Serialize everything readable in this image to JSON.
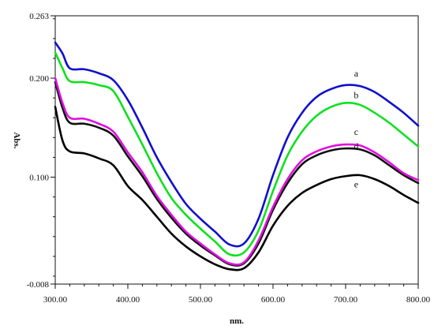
{
  "chart_data": {
    "type": "line",
    "title": "",
    "xlabel": "nm.",
    "ylabel": "Abs.",
    "xlim": [
      300,
      800
    ],
    "ylim": [
      -0.008,
      0.263
    ],
    "grid": false,
    "legend": "inline curve labels",
    "x_ticks": [
      {
        "value": 300,
        "label": "300.00"
      },
      {
        "value": 400,
        "label": "400.00"
      },
      {
        "value": 500,
        "label": "500.00"
      },
      {
        "value": 600,
        "label": "600.00"
      },
      {
        "value": 700,
        "label": "700.00"
      },
      {
        "value": 800,
        "label": "800.00"
      }
    ],
    "y_ticks": [
      {
        "value": 0.263,
        "label": "0.263"
      },
      {
        "value": 0.2,
        "label": "0.200"
      },
      {
        "value": 0.1,
        "label": "0.100"
      },
      {
        "value": -0.008,
        "label": "-0.008"
      }
    ],
    "x": [
      300,
      310,
      320,
      340,
      360,
      380,
      400,
      420,
      440,
      460,
      480,
      500,
      520,
      540,
      560,
      580,
      600,
      620,
      640,
      660,
      680,
      700,
      720,
      740,
      760,
      780,
      800
    ],
    "series": [
      {
        "name": "a",
        "color": "#1010cc",
        "label_at": {
          "x": 720,
          "y": 0.197
        },
        "values": [
          0.236,
          0.225,
          0.21,
          0.209,
          0.205,
          0.198,
          0.178,
          0.15,
          0.12,
          0.095,
          0.073,
          0.058,
          0.045,
          0.032,
          0.033,
          0.058,
          0.102,
          0.14,
          0.165,
          0.181,
          0.189,
          0.193,
          0.192,
          0.186,
          0.176,
          0.165,
          0.152
        ]
      },
      {
        "name": "b",
        "color": "#10e020",
        "label_at": {
          "x": 720,
          "y": 0.175
        },
        "values": [
          0.226,
          0.21,
          0.197,
          0.196,
          0.193,
          0.187,
          0.161,
          0.133,
          0.104,
          0.079,
          0.062,
          0.048,
          0.035,
          0.022,
          0.024,
          0.046,
          0.086,
          0.122,
          0.146,
          0.162,
          0.171,
          0.175,
          0.173,
          0.165,
          0.155,
          0.143,
          0.131
        ]
      },
      {
        "name": "c",
        "color": "#e010e0",
        "label_at": {
          "x": 720,
          "y": 0.138
        },
        "values": [
          0.2,
          0.175,
          0.16,
          0.159,
          0.154,
          0.146,
          0.125,
          0.105,
          0.081,
          0.062,
          0.045,
          0.033,
          0.022,
          0.013,
          0.014,
          0.036,
          0.07,
          0.098,
          0.117,
          0.126,
          0.131,
          0.133,
          0.132,
          0.125,
          0.115,
          0.104,
          0.097
        ]
      },
      {
        "name": "d",
        "color": "#111111",
        "label_at": {
          "x": 720,
          "y": 0.123
        },
        "values": [
          0.196,
          0.17,
          0.155,
          0.154,
          0.15,
          0.142,
          0.121,
          0.101,
          0.078,
          0.059,
          0.043,
          0.031,
          0.021,
          0.012,
          0.013,
          0.033,
          0.067,
          0.094,
          0.113,
          0.122,
          0.127,
          0.129,
          0.128,
          0.122,
          0.112,
          0.102,
          0.094
        ]
      },
      {
        "name": "e",
        "color": "#000000",
        "label_at": {
          "x": 720,
          "y": 0.085
        },
        "values": [
          0.171,
          0.137,
          0.126,
          0.124,
          0.119,
          0.112,
          0.091,
          0.077,
          0.06,
          0.043,
          0.03,
          0.02,
          0.012,
          0.007,
          0.008,
          0.024,
          0.051,
          0.071,
          0.084,
          0.092,
          0.098,
          0.101,
          0.102,
          0.098,
          0.091,
          0.082,
          0.074
        ]
      }
    ]
  }
}
